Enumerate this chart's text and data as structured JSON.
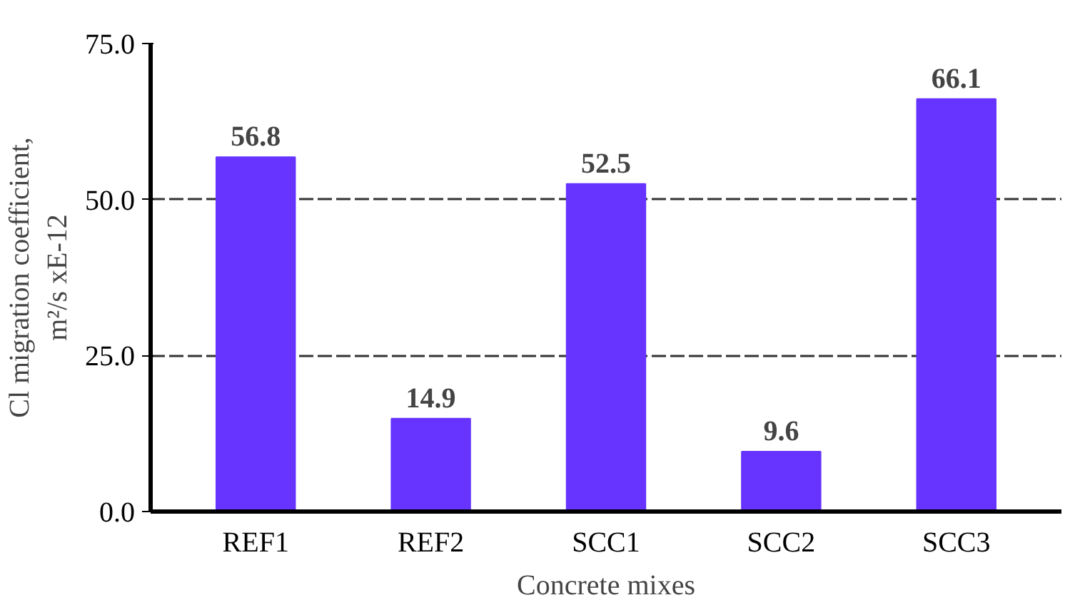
{
  "chart_data": {
    "type": "bar",
    "xlabel": "Concrete mixes",
    "ylabel": "Cl migration coefficient,\nm²/s xE-12",
    "categories": [
      "REF1",
      "REF2",
      "SCC1",
      "SCC2",
      "SCC3"
    ],
    "values": [
      56.8,
      14.9,
      52.5,
      9.6,
      66.1
    ],
    "color": "#6633ff",
    "ylim": [
      0,
      75
    ],
    "yticks": [
      {
        "value": 0,
        "label": "0.0"
      },
      {
        "value": 25,
        "label": "25.0"
      },
      {
        "value": 50,
        "label": "50.0"
      },
      {
        "value": 75,
        "label": "75.0"
      }
    ],
    "grid": "y",
    "data_labels": true
  }
}
